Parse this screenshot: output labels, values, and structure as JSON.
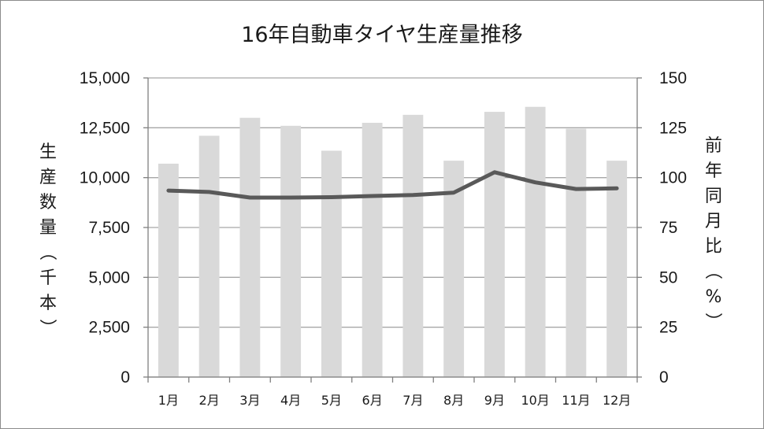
{
  "chart_data": {
    "type": "bar",
    "title": "16年自動車タイヤ生産量推移",
    "categories": [
      "1月",
      "2月",
      "3月",
      "4月",
      "5月",
      "6月",
      "7月",
      "8月",
      "9月",
      "10月",
      "11月",
      "12月"
    ],
    "ylabel": "生産数量（千本）",
    "y2label": "前年同月比（%）",
    "ylim": [
      0,
      15000
    ],
    "y2lim": [
      0,
      150
    ],
    "yticks": [
      "0",
      "2,500",
      "5,000",
      "7,500",
      "10,000",
      "12,500",
      "15,000"
    ],
    "y2ticks": [
      "0",
      "25",
      "50",
      "75",
      "100",
      "125",
      "150"
    ],
    "grid": true,
    "series": [
      {
        "type": "bar",
        "axis": "left",
        "color": "#d9d9d9",
        "values": [
          10700,
          12100,
          13000,
          12600,
          11350,
          12750,
          13150,
          10850,
          13300,
          13550,
          12450,
          10850
        ]
      },
      {
        "type": "line",
        "axis": "right",
        "color": "#595959",
        "values": [
          93.5,
          92.8,
          90.0,
          90.0,
          90.2,
          90.8,
          91.3,
          92.5,
          102.7,
          97.6,
          94.3,
          94.6
        ]
      }
    ]
  }
}
